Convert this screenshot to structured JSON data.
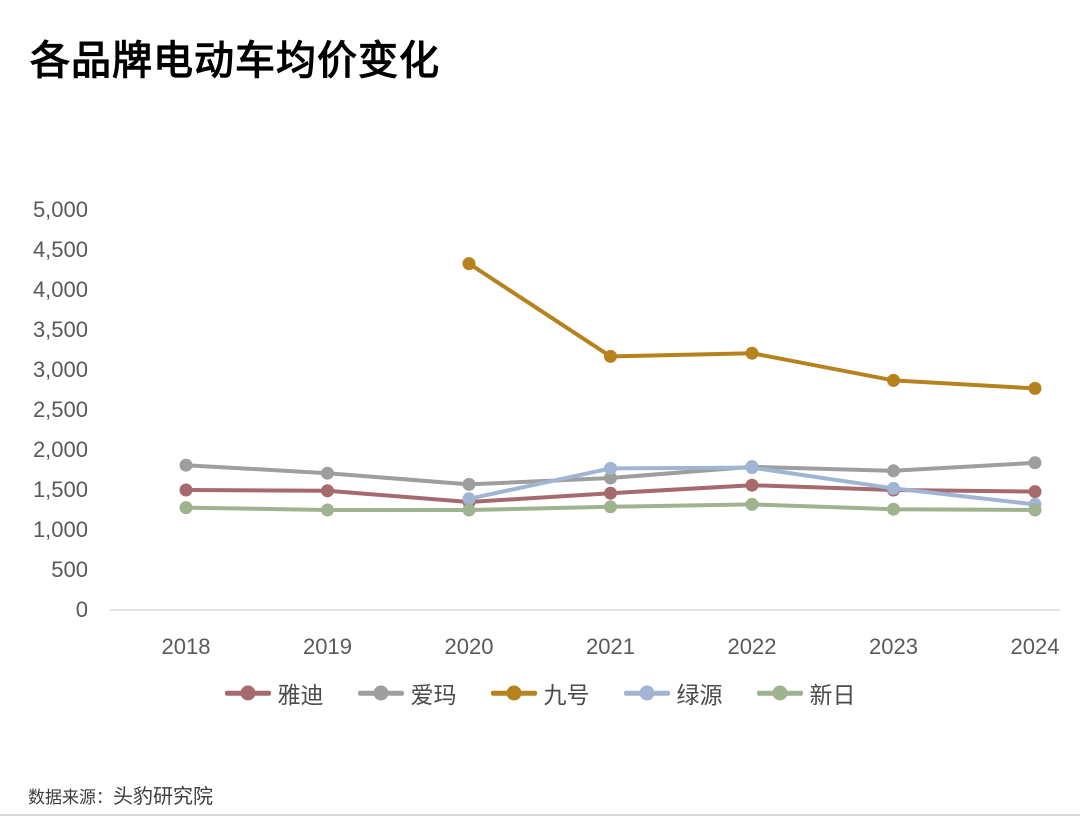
{
  "chart_data": {
    "type": "line",
    "title": "各品牌电动车均价变化",
    "xlabel": "",
    "ylabel": "",
    "x": [
      "2018",
      "2019",
      "2020",
      "2021",
      "2022",
      "2023",
      "2024"
    ],
    "series": [
      {
        "name": "雅迪",
        "color": "#A6696D",
        "values": [
          1500,
          1490,
          1350,
          1460,
          1560,
          1500,
          1480
        ]
      },
      {
        "name": "爱玛",
        "color": "#9E9E9E",
        "values": [
          1810,
          1710,
          1570,
          1650,
          1790,
          1740,
          1840
        ]
      },
      {
        "name": "九号",
        "color": "#B5821E",
        "values": [
          null,
          null,
          4330,
          3170,
          3210,
          2870,
          2770
        ]
      },
      {
        "name": "绿源",
        "color": "#9FB5D3",
        "values": [
          null,
          null,
          1390,
          1770,
          1780,
          1520,
          1320
        ]
      },
      {
        "name": "新日",
        "color": "#9FB38E",
        "values": [
          1280,
          1250,
          1250,
          1290,
          1320,
          1260,
          1250
        ]
      }
    ],
    "ylim": [
      0,
      5000
    ],
    "ytick_step": 500,
    "grid": false,
    "legend_position": "bottom"
  },
  "source": {
    "prefix": "数据来源：",
    "name": "头豹研究院"
  },
  "style_colors": {
    "axis_text": "#595959",
    "axis_line": "#D9D9D9",
    "title_text": "#000000"
  }
}
